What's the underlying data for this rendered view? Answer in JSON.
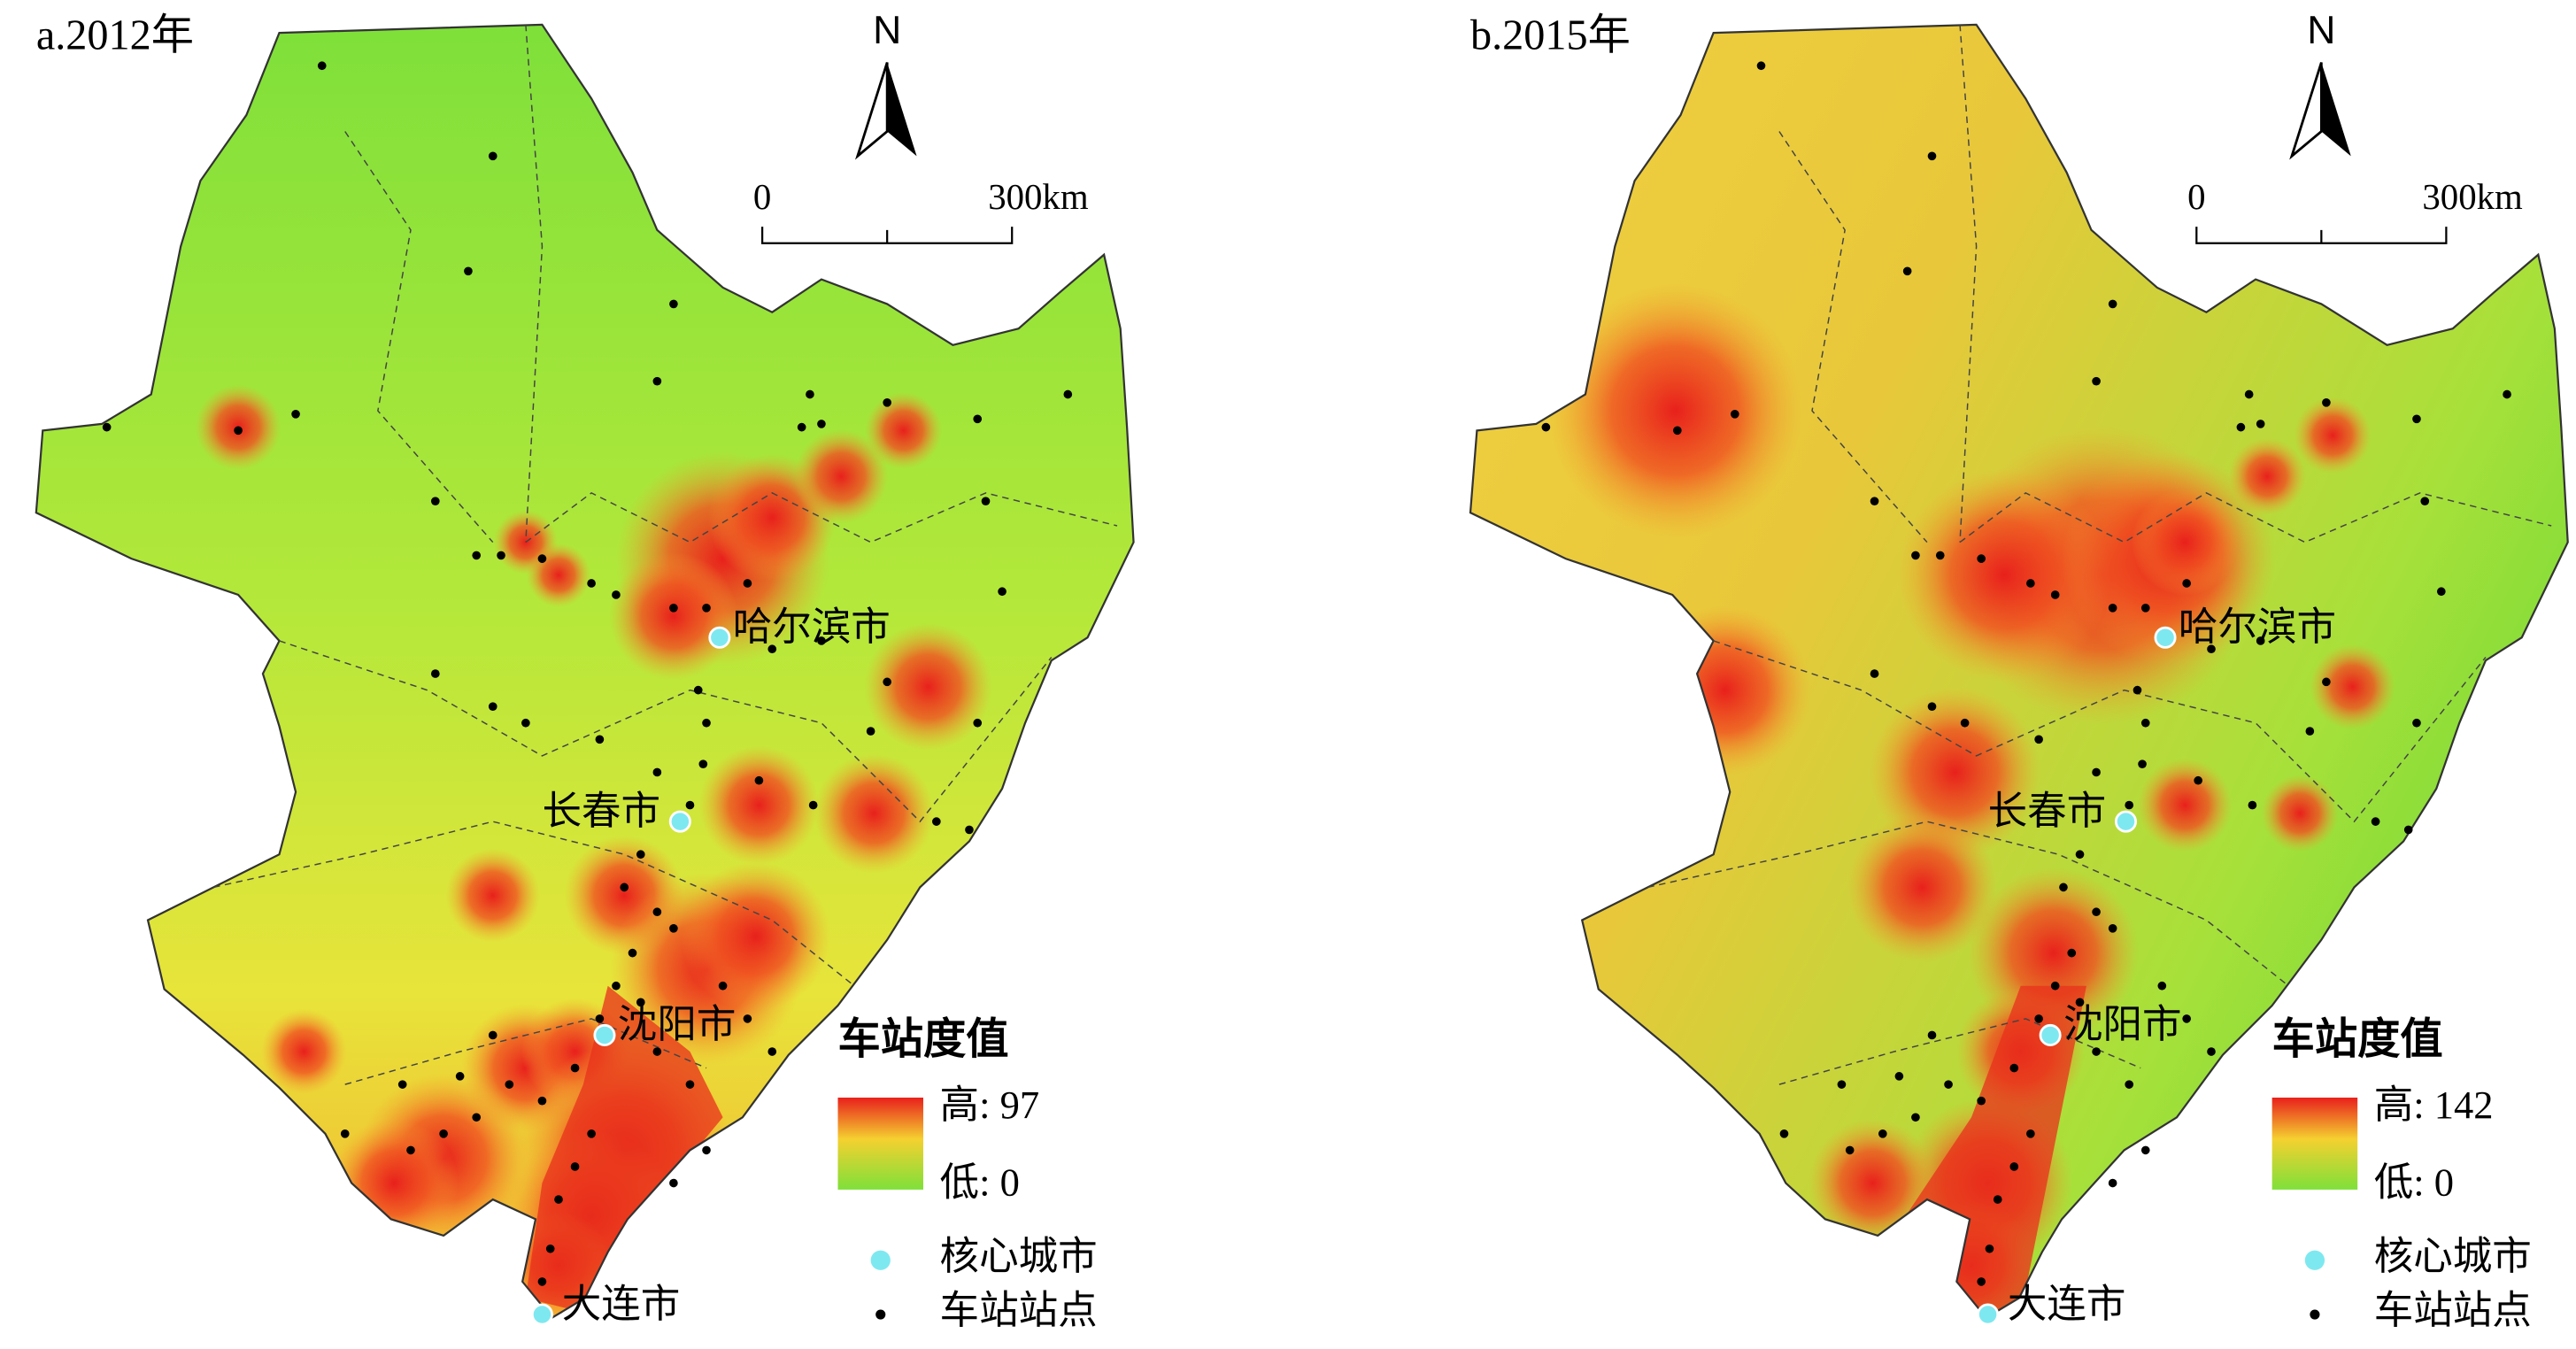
{
  "panels": [
    {
      "title": "a.2012年",
      "north": "N",
      "scale_bar": {
        "start": "0",
        "end": "300km"
      },
      "cities": [
        "哈尔滨市",
        "长春市",
        "沈阳市",
        "大连市"
      ],
      "legend": {
        "title": "车站度值",
        "high": "高: 97",
        "low": "低: 0",
        "core_city": "核心城市",
        "station": "车站站点"
      }
    },
    {
      "title": "b.2015年",
      "north": "N",
      "scale_bar": {
        "start": "0",
        "end": "300km"
      },
      "cities": [
        "哈尔滨市",
        "长春市",
        "沈阳市",
        "大连市"
      ],
      "legend": {
        "title": "车站度值",
        "high": "高: 142",
        "low": "低: 0",
        "core_city": "核心城市",
        "station": "车站站点"
      }
    }
  ]
}
